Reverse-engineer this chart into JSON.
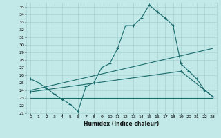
{
  "title": "",
  "xlabel": "Humidex (Indice chaleur)",
  "background_color": "#c2e8e8",
  "grid_color": "#a0cccc",
  "line_color": "#1a6b6b",
  "xlim": [
    -0.5,
    23.5
  ],
  "ylim": [
    21,
    35.5
  ],
  "yticks": [
    21,
    22,
    23,
    24,
    25,
    26,
    27,
    28,
    29,
    30,
    31,
    32,
    33,
    34,
    35
  ],
  "xticks": [
    0,
    1,
    2,
    3,
    4,
    5,
    6,
    7,
    8,
    9,
    10,
    11,
    12,
    13,
    14,
    15,
    16,
    17,
    18,
    19,
    20,
    21,
    22,
    23
  ],
  "line1_x": [
    0,
    1,
    2,
    3,
    4,
    5,
    6,
    7,
    8,
    9,
    10,
    11,
    12,
    13,
    14,
    15,
    16,
    17,
    18,
    19,
    20,
    21,
    22,
    23
  ],
  "line1_y": [
    25.5,
    25.0,
    24.3,
    23.5,
    22.8,
    22.2,
    21.2,
    24.5,
    25.0,
    27.0,
    27.5,
    29.5,
    32.5,
    32.5,
    33.5,
    35.2,
    34.3,
    33.5,
    32.5,
    27.5,
    26.5,
    25.5,
    24.0,
    23.2
  ],
  "line2_x": [
    0,
    23
  ],
  "line2_y": [
    24.0,
    29.5
  ],
  "line3_x": [
    0,
    19,
    23
  ],
  "line3_y": [
    23.8,
    26.5,
    23.2
  ],
  "line4_x": [
    0,
    23
  ],
  "line4_y": [
    23.0,
    23.0
  ]
}
